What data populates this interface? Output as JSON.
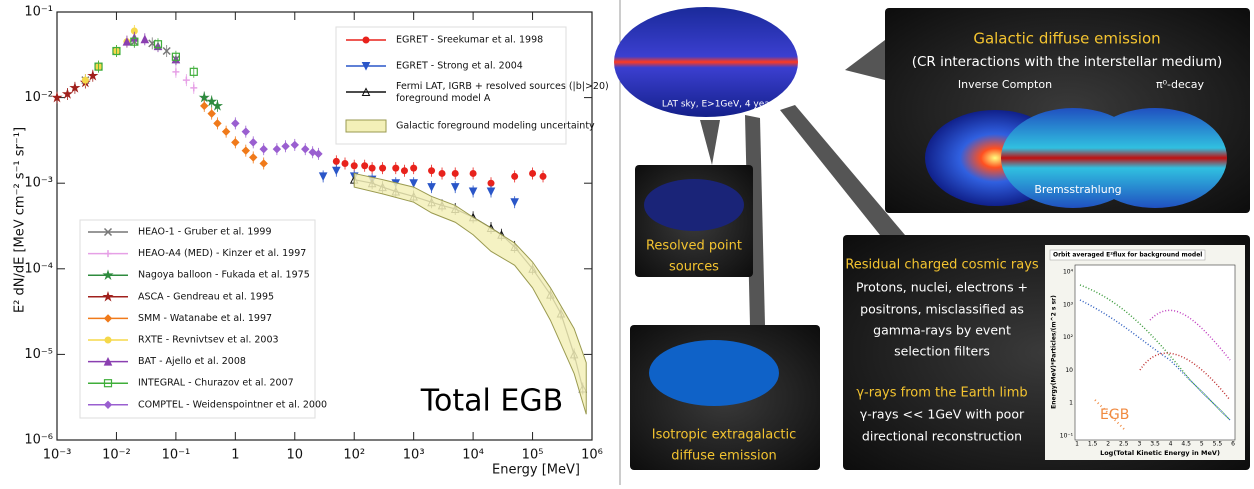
{
  "chart_data": {
    "type": "scatter",
    "y_label": "E² dN/dE [MeV cm⁻² s⁻¹ sr⁻¹]",
    "x_label": "Energy [MeV]",
    "annotation": "Total EGB",
    "log_x": true,
    "log_y": true,
    "xlim": [
      0.001,
      1000000
    ],
    "ylim": [
      1e-06,
      0.1
    ],
    "xticks": [
      {
        "value": 0.001,
        "label": "10⁻³"
      },
      {
        "value": 0.01,
        "label": "10⁻²"
      },
      {
        "value": 0.1,
        "label": "10⁻¹"
      },
      1,
      10,
      {
        "value": 100,
        "label": "10²"
      },
      {
        "value": 1000,
        "label": "10³"
      },
      {
        "value": 10000,
        "label": "10⁴"
      },
      {
        "value": 100000,
        "label": "10⁵"
      },
      {
        "value": 1000000,
        "label": "10⁶"
      }
    ],
    "yticks": [
      {
        "value": 1e-06,
        "label": "10⁻⁶"
      },
      {
        "value": 1e-05,
        "label": "10⁻⁵"
      },
      {
        "value": 0.0001,
        "label": "10⁻⁴"
      },
      {
        "value": 0.001,
        "label": "10⁻³"
      },
      {
        "value": 0.01,
        "label": "10⁻²"
      },
      {
        "value": 0.1,
        "label": "10⁻¹"
      }
    ],
    "series": [
      {
        "name": "EGRET - Sreekumar et al. 1998",
        "color": "#e8221c",
        "marker": "circle",
        "x": [
          50,
          70,
          100,
          150,
          200,
          300,
          500,
          700,
          1000,
          2000,
          3000,
          5000,
          10000,
          20000,
          50000,
          100000,
          150000
        ],
        "values": [
          0.0018,
          0.0017,
          0.0016,
          0.0016,
          0.0015,
          0.0015,
          0.0015,
          0.0014,
          0.0015,
          0.0014,
          0.0013,
          0.0013,
          0.0013,
          0.001,
          0.0012,
          0.0013,
          0.0012
        ]
      },
      {
        "name": "EGRET - Strong et al. 2004",
        "color": "#2a56c8",
        "marker": "tri-down",
        "x": [
          30,
          50,
          100,
          200,
          500,
          1000,
          2000,
          5000,
          10000,
          20000,
          50000
        ],
        "values": [
          0.0012,
          0.0014,
          0.0012,
          0.0011,
          0.001,
          0.001,
          0.0009,
          0.0009,
          0.0008,
          0.0008,
          0.0006
        ]
      },
      {
        "name": "Fermi LAT, IGRB + resolved sources (|b|>20)\nforeground model A",
        "color": "#111111",
        "marker": "tri-up",
        "x": [
          100,
          200,
          300,
          500,
          1000,
          2000,
          3000,
          5000,
          10000,
          20000,
          30000,
          50000,
          100000,
          200000,
          300000,
          500000,
          700000
        ],
        "values": [
          0.0011,
          0.001,
          0.0009,
          0.0008,
          0.0007,
          0.0006,
          0.00055,
          0.0005,
          0.0004,
          0.0003,
          0.00025,
          0.00018,
          0.0001,
          5e-05,
          3e-05,
          1e-05,
          4e-06
        ]
      },
      {
        "name": "Galactic foreground modeling uncertainty",
        "color": "#f3f0b8",
        "marker": "band",
        "x": [
          100,
          300,
          1000,
          2000,
          5000,
          10000,
          20000,
          50000,
          100000,
          200000,
          500000,
          800000
        ],
        "values": [
          0.0013,
          0.0011,
          0.0009,
          0.0007,
          0.00055,
          0.0004,
          0.0003,
          0.0002,
          0.00012,
          6e-05,
          2e-05,
          8e-06
        ],
        "lower": [
          0.0009,
          0.00075,
          0.0006,
          0.00045,
          0.00035,
          0.00025,
          0.00016,
          0.00011,
          6e-05,
          2.5e-05,
          6e-06,
          2e-06
        ]
      },
      {
        "name": "HEAO-1 - Gruber et al. 1999",
        "color": "#777777",
        "marker": "cross",
        "x": [
          0.003,
          0.005,
          0.01,
          0.02,
          0.04,
          0.07,
          0.1
        ],
        "values": [
          0.016,
          0.023,
          0.035,
          0.045,
          0.043,
          0.035,
          0.028
        ]
      },
      {
        "name": "HEAO-A4 (MED) - Kinzer et al. 1997",
        "color": "#e6a0e6",
        "marker": "plus",
        "x": [
          0.1,
          0.15,
          0.2,
          0.3
        ],
        "values": [
          0.02,
          0.016,
          0.013,
          0.01
        ]
      },
      {
        "name": "Nagoya balloon - Fukada et al. 1975",
        "color": "#2e8b3e",
        "marker": "star",
        "x": [
          0.3,
          0.4,
          0.5
        ],
        "values": [
          0.01,
          0.009,
          0.008
        ]
      },
      {
        "name": "ASCA - Gendreau et al. 1995",
        "color": "#a0201c",
        "marker": "star",
        "x": [
          0.001,
          0.0015,
          0.002,
          0.003,
          0.004
        ],
        "values": [
          0.01,
          0.011,
          0.013,
          0.015,
          0.018
        ]
      },
      {
        "name": "SMM - Watanabe et al. 1997",
        "color": "#f07a1a",
        "marker": "diamond",
        "x": [
          0.3,
          0.4,
          0.5,
          0.7,
          1,
          1.5,
          2,
          3
        ],
        "values": [
          0.008,
          0.0065,
          0.005,
          0.004,
          0.003,
          0.0024,
          0.002,
          0.0017
        ]
      },
      {
        "name": "RXTE - Revnivtsev et al. 2003",
        "color": "#f5d84a",
        "marker": "circle",
        "x": [
          0.003,
          0.005,
          0.01,
          0.015,
          0.02
        ],
        "values": [
          0.016,
          0.023,
          0.035,
          0.045,
          0.06
        ]
      },
      {
        "name": "BAT - Ajello et al. 2008",
        "color": "#8a3fb0",
        "marker": "tri-up",
        "x": [
          0.015,
          0.02,
          0.03,
          0.05,
          0.1
        ],
        "values": [
          0.045,
          0.05,
          0.048,
          0.04,
          0.028
        ]
      },
      {
        "name": "INTEGRAL - Churazov et al. 2007",
        "color": "#3fae3a",
        "marker": "square",
        "x": [
          0.005,
          0.01,
          0.02,
          0.05,
          0.1,
          0.2
        ],
        "values": [
          0.023,
          0.035,
          0.045,
          0.042,
          0.03,
          0.02
        ]
      },
      {
        "name": "COMPTEL - Weidenspointner et al. 2000",
        "color": "#9a5fd0",
        "marker": "diamond",
        "x": [
          1,
          1.5,
          2,
          3,
          5,
          7,
          10,
          15,
          20,
          25
        ],
        "values": [
          0.005,
          0.004,
          0.003,
          0.0025,
          0.0025,
          0.0027,
          0.0028,
          0.0025,
          0.0023,
          0.0022
        ]
      }
    ]
  },
  "diagram": {
    "sky_caption": "LAT sky, E>1GeV, 4 years",
    "galactic_title": "Galactic diffuse emission",
    "galactic_subtitle": "(CR interactions with the interstellar medium)",
    "inverse_compton": "Inverse Compton",
    "pi0_decay": "π⁰-decay",
    "bremsstrahlung": "Bremsstrahlung",
    "point_sources": [
      "Resolved point",
      "sources"
    ],
    "isotropic": [
      "Isotropic extragalactic",
      "diffuse emission"
    ],
    "residual_title": "Residual charged cosmic rays",
    "residual_lines": [
      "Protons, nuclei, electrons +",
      "positrons, misclassified as",
      "gamma-rays by event",
      "selection filters"
    ],
    "limb_title": "γ-rays from the Earth limb",
    "limb_lines": [
      "γ-rays << 1GeV with poor",
      "directional reconstruction"
    ],
    "inset_title": "Orbit averaged E²flux for background model",
    "inset_x_label": "Log(Total Kinetic Energy in MeV)",
    "inset_y_label": "Energy(MeV)*Particles/(m^2 s sr)",
    "inset_x_ticks": [
      1,
      1.5,
      2,
      2.5,
      3,
      3.5,
      4,
      4.5,
      5,
      5.5,
      6
    ],
    "inset_y_ticks": [
      "10⁴",
      "10³",
      "10²",
      "10",
      "1",
      "10⁻¹"
    ],
    "inset_egb": "EGB"
  }
}
